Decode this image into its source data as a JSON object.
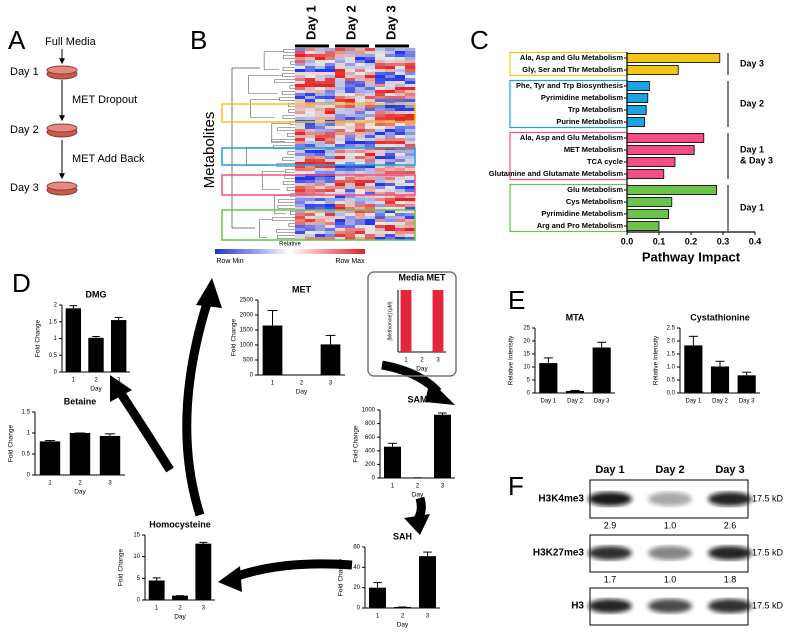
{
  "panel_labels": [
    "A",
    "B",
    "C",
    "D",
    "E",
    "F"
  ],
  "panel_a": {
    "media": "Full Media",
    "days": [
      "Day 1",
      "Day 2",
      "Day 3"
    ],
    "treatments": [
      "MET Dropout",
      "MET Add Back"
    ]
  },
  "panel_b": {
    "columns": [
      "Day 1",
      "Day 2",
      "Day 3"
    ],
    "row_label": "Metabolites",
    "legend": {
      "title": "Relative",
      "min": "Row Min",
      "max": "Row Max"
    }
  },
  "chart_data": [
    {
      "type": "bar",
      "orientation": "horizontal",
      "xlabel": "Pathway Impact",
      "xlim": [
        0,
        0.4
      ],
      "xticks": [
        {
          "value": 0,
          "label": "0.0"
        },
        0.1,
        0.2,
        0.3,
        0.4
      ],
      "series": [
        {
          "name": "Day 3",
          "color": "#f5c518",
          "categories": [
            "Ala, Asp and Glu Metabolism",
            "Gly, Ser and Thr Metabolism"
          ],
          "values": [
            0.29,
            0.16
          ]
        },
        {
          "name": "Day 2",
          "color": "#1aa3dc",
          "categories": [
            "Phe, Tyr and Trp Biosynthesis",
            "Pyrimidine metabolism",
            "Trp Metabolism",
            "Purine Metabolism"
          ],
          "values": [
            0.07,
            0.065,
            0.06,
            0.055
          ]
        },
        {
          "name": "Day 1 & Day 3",
          "color": "#ef4f86",
          "categories": [
            "Ala, Asp and Glu Metabolism",
            "MET Metabolism",
            "TCA cycle",
            "Glutamine and Glutamate Metabolism"
          ],
          "values": [
            0.24,
            0.21,
            0.15,
            0.115
          ]
        },
        {
          "name": "Day 1",
          "color": "#6cc24a",
          "categories": [
            "Glu Metabolism",
            "Cys Metabolism",
            "Pyrimidine Metabolism",
            "Arg and Pro Metabolism"
          ],
          "values": [
            0.28,
            0.14,
            0.13,
            0.1
          ]
        }
      ]
    },
    {
      "type": "bar",
      "title": "DMG",
      "ylabel": "Fold Change",
      "xlabel": "Day",
      "categories": [
        "1",
        "2",
        "3"
      ],
      "values": [
        1.9,
        1.02,
        1.55
      ],
      "errors": [
        0.08,
        0.04,
        0.08
      ],
      "color": "#000000",
      "ylim": [
        0,
        2
      ],
      "yticks": [
        0,
        0.5,
        1,
        1.5,
        2
      ]
    },
    {
      "type": "bar",
      "title": "MET",
      "ylabel": "Fold Change",
      "xlabel": "Day",
      "categories": [
        "1",
        "2",
        "3"
      ],
      "values": [
        1650,
        0,
        1020
      ],
      "errors": [
        500,
        0,
        300
      ],
      "color": "#000000",
      "ylim": [
        0,
        2500
      ],
      "yticks": [
        0,
        500,
        1000,
        1500,
        2000,
        2500
      ]
    },
    {
      "type": "bar",
      "title": "Media MET",
      "ylabel": "[Methionine] (µM)",
      "xlabel": "Day",
      "categories": [
        "1",
        "2",
        "3"
      ],
      "values": [
        1,
        0,
        1
      ],
      "color": "#e3263b",
      "ylim": [
        0,
        1
      ]
    },
    {
      "type": "bar",
      "title": "Betaine",
      "ylabel": "Fold Change",
      "xlabel": "Day",
      "categories": [
        "1",
        "2",
        "3"
      ],
      "values": [
        0.8,
        1.0,
        0.93
      ],
      "errors": [
        0.02,
        0,
        0.05
      ],
      "color": "#000000",
      "ylim": [
        0,
        1.5
      ],
      "yticks": [
        0,
        0.5,
        1,
        1.5
      ]
    },
    {
      "type": "bar",
      "title": "SAM",
      "ylabel": "Fold Change",
      "xlabel": "Day",
      "categories": [
        "1",
        "2",
        "3"
      ],
      "values": [
        460,
        3,
        930
      ],
      "errors": [
        50,
        0,
        25
      ],
      "color": "#000000",
      "ylim": [
        0,
        1000
      ],
      "yticks": [
        0,
        200,
        400,
        600,
        800,
        1000
      ]
    },
    {
      "type": "bar",
      "title": "Homocysteine",
      "ylabel": "Fold Change",
      "xlabel": "Day",
      "categories": [
        "1",
        "2",
        "3"
      ],
      "values": [
        4.5,
        1,
        13
      ],
      "errors": [
        0.6,
        0,
        0.3
      ],
      "color": "#000000",
      "ylim": [
        0,
        15
      ],
      "yticks": [
        0,
        5,
        10,
        15
      ]
    },
    {
      "type": "bar",
      "title": "SAH",
      "ylabel": "Fold Change",
      "xlabel": "Day",
      "categories": [
        "1",
        "2",
        "3"
      ],
      "values": [
        20,
        1,
        51
      ],
      "errors": [
        5,
        0,
        4
      ],
      "color": "#000000",
      "ylim": [
        0,
        60
      ],
      "yticks": [
        0,
        20,
        40,
        60
      ]
    },
    {
      "type": "bar",
      "title": "MTA",
      "ylabel": "Relative Intensity",
      "categories": [
        "Day 1",
        "Day 2",
        "Day 3"
      ],
      "values": [
        11.5,
        0.8,
        17.5
      ],
      "errors": [
        2,
        0.2,
        2
      ],
      "color": "#000000",
      "ylim": [
        0,
        25
      ],
      "yticks": [
        0,
        5,
        10,
        15,
        20,
        25
      ]
    },
    {
      "type": "bar",
      "title": "Cystathionine",
      "ylabel": "Relative Intensity",
      "categories": [
        "Day 1",
        "Day 2",
        "Day 3"
      ],
      "values": [
        1.83,
        1.02,
        0.68
      ],
      "errors": [
        0.35,
        0.2,
        0.12
      ],
      "color": "#000000",
      "ylim": [
        0,
        2.5
      ],
      "yticks": [
        {
          "value": 0,
          "label": "0.0"
        },
        0.5,
        {
          "value": 1,
          "label": "1.0"
        },
        1.5,
        {
          "value": 2,
          "label": "2.0"
        },
        2.5
      ]
    }
  ],
  "panel_f": {
    "columns": [
      "Day 1",
      "Day 2",
      "Day 3"
    ],
    "rows": [
      {
        "label": "H3K4me3",
        "size": "17.5 kD",
        "quantification": [
          "2.9",
          "1.0",
          "2.6"
        ]
      },
      {
        "label": "H3K27me3",
        "size": "17.5 kD",
        "quantification": [
          "1.7",
          "1.0",
          "1.8"
        ]
      },
      {
        "label": "H3",
        "size": "17.5 kD"
      }
    ]
  }
}
